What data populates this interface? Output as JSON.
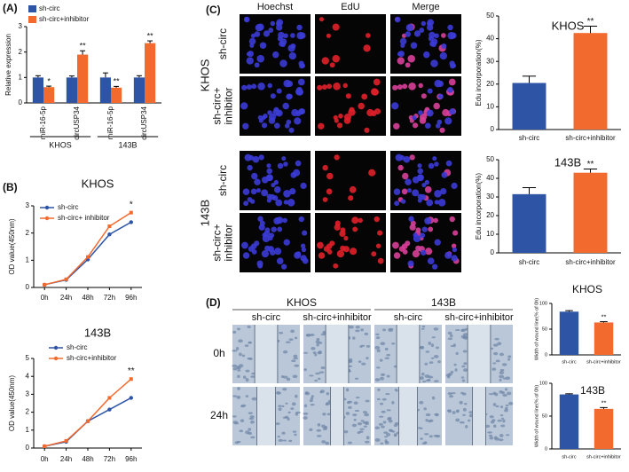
{
  "panels": {
    "a": "(A)",
    "b": "(B)",
    "c": "(C)",
    "d": "(D)"
  },
  "edu_images": {
    "columns": [
      "Hoechst",
      "EdU",
      "Merge"
    ],
    "rows": [
      [
        "sh-circ"
      ],
      [
        "sh-circ+",
        "inhibitor"
      ],
      [
        "sh-circ"
      ],
      [
        "sh-circ+",
        "inhibitor"
      ]
    ],
    "groups": [
      "KHOS",
      "143B"
    ]
  },
  "wound_images": {
    "groups": [
      "KHOS",
      "143B"
    ],
    "columns": [
      "sh-circ",
      "sh-circ+inhibitor",
      "sh-circ",
      "sh-circ+inhibitor"
    ],
    "rows": [
      "0h",
      "24h"
    ]
  },
  "chart_data": [
    {
      "type": "bar",
      "ylabel": "Relative expression",
      "categories": [
        "miR-16-5p",
        "circUSP34",
        "miR-16-5p",
        "circUSP34"
      ],
      "groups": [
        "KHOS",
        "143B"
      ],
      "series": [
        {
          "name": "sh-circ",
          "color": "#2e54a6",
          "values": [
            1,
            1,
            1,
            1
          ],
          "errors": [
            0.07,
            0.06,
            0.18,
            0.07
          ]
        },
        {
          "name": "sh-circ+inhibitor",
          "color": "#f26a2e",
          "values": [
            0.62,
            1.9,
            0.6,
            2.35
          ],
          "errors": [
            0.04,
            0.15,
            0.05,
            0.09
          ],
          "significance": [
            "*",
            "**",
            "**",
            "**"
          ]
        }
      ],
      "ylim": [
        0,
        3
      ],
      "yticks": [
        0,
        1,
        2,
        3
      ],
      "legend": "upper left"
    },
    {
      "type": "line",
      "title": "KHOS",
      "ylabel": "OD value(450nm)",
      "categories": [
        "0h",
        "24h",
        "48h",
        "72h",
        "96h"
      ],
      "series": [
        {
          "name": "sh-circ",
          "color": "#2e54a6",
          "values": [
            0.1,
            0.28,
            1.03,
            1.95,
            2.4
          ]
        },
        {
          "name": "sh-circ+ inhibitor",
          "color": "#f26a2e",
          "values": [
            0.1,
            0.3,
            1.12,
            2.25,
            2.75
          ],
          "significance": [
            null,
            null,
            null,
            null,
            "*"
          ]
        }
      ],
      "ylim": [
        0,
        3
      ],
      "yticks": [
        0,
        1,
        2,
        3
      ],
      "legend": "upper left"
    },
    {
      "type": "line",
      "title": "143B",
      "ylabel": "OD value(450nm)",
      "categories": [
        "0h",
        "24h",
        "48h",
        "72h",
        "96h"
      ],
      "series": [
        {
          "name": "sh-circ",
          "color": "#2e54a6",
          "values": [
            0.1,
            0.35,
            1.5,
            2.15,
            2.8
          ]
        },
        {
          "name": "sh-circ+inhibitor",
          "color": "#f26a2e",
          "values": [
            0.1,
            0.4,
            1.5,
            2.8,
            3.85
          ],
          "significance": [
            null,
            null,
            null,
            null,
            "**"
          ]
        }
      ],
      "ylim": [
        0,
        5
      ],
      "yticks": [
        0,
        1,
        2,
        3,
        4,
        5
      ],
      "legend": "upper left"
    },
    {
      "type": "bar",
      "title": "KHOS",
      "ylabel": "Edu incorporation(%)",
      "categories": [
        "sh-circ",
        "sh-circ+inhibitor"
      ],
      "values": [
        20.5,
        42.5
      ],
      "errors": [
        3,
        3
      ],
      "colors": [
        "#2e54a6",
        "#f26a2e"
      ],
      "significance": [
        null,
        "**"
      ],
      "ylim": [
        0,
        50
      ],
      "yticks": [
        0,
        10,
        20,
        30,
        40,
        50
      ]
    },
    {
      "type": "bar",
      "title": "143B",
      "ylabel": "Edu incorporation(%)",
      "categories": [
        "sh-circ",
        "sh-circ+inhibitor"
      ],
      "values": [
        31.5,
        43
      ],
      "errors": [
        3.5,
        2
      ],
      "colors": [
        "#2e54a6",
        "#f26a2e"
      ],
      "significance": [
        null,
        "**"
      ],
      "ylim": [
        0,
        50
      ],
      "yticks": [
        0,
        10,
        20,
        30,
        40,
        50
      ]
    },
    {
      "type": "bar",
      "title": "KHOS",
      "ylabel": "Width of wound line(% of 0h)",
      "categories": [
        "sh-circ",
        "sh-circ+inhibitor"
      ],
      "values": [
        84,
        63
      ],
      "errors": [
        2,
        1.5
      ],
      "colors": [
        "#2e54a6",
        "#f26a2e"
      ],
      "significance": [
        null,
        "**"
      ],
      "ylim": [
        0,
        100
      ],
      "yticks": [
        0,
        50,
        100
      ]
    },
    {
      "type": "bar",
      "title": "143B",
      "ylabel": "Width of wound line(% of 0h)",
      "categories": [
        "sh-circ",
        "sh-circ+inhibitor"
      ],
      "values": [
        83,
        61
      ],
      "errors": [
        1,
        2
      ],
      "colors": [
        "#2e54a6",
        "#f26a2e"
      ],
      "significance": [
        null,
        "**"
      ],
      "ylim": [
        0,
        100
      ],
      "yticks": [
        0,
        50,
        100
      ]
    }
  ]
}
